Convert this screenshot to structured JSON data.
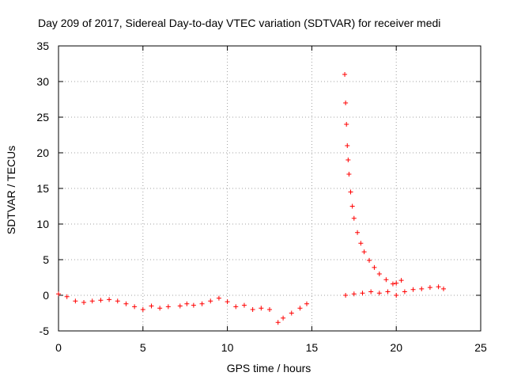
{
  "chart_data": {
    "type": "scatter",
    "title": "Day 209 of 2017, Sidereal Day-to-day VTEC variation (SDTVAR) for receiver medi",
    "xlabel": "GPS time / hours",
    "ylabel": "SDTVAR / TECUs",
    "xlim": [
      0,
      25
    ],
    "ylim": [
      -5,
      35
    ],
    "xticks": [
      0,
      5,
      10,
      15,
      20,
      25
    ],
    "yticks": [
      -5,
      0,
      5,
      10,
      15,
      20,
      25,
      30,
      35
    ],
    "grid": true,
    "marker": "+",
    "color": "#ff0000",
    "series": [
      {
        "name": "SDTVAR",
        "x": [
          0.0,
          0.5,
          1.0,
          1.5,
          2.0,
          2.5,
          3.0,
          3.5,
          4.0,
          4.5,
          5.0,
          5.5,
          6.0,
          6.5,
          7.2,
          7.6,
          8.0,
          8.5,
          9.0,
          9.5,
          10.0,
          10.5,
          11.0,
          11.5,
          12.0,
          12.5,
          13.0,
          13.3,
          13.8,
          14.3,
          14.7,
          16.95,
          17.0,
          17.05,
          17.1,
          17.15,
          17.2,
          17.3,
          17.4,
          17.5,
          17.7,
          17.9,
          18.1,
          18.4,
          18.7,
          19.0,
          19.4,
          19.8,
          20.0,
          20.3,
          17.0,
          17.5,
          18.0,
          18.5,
          19.0,
          19.5,
          20.0,
          20.5,
          21.0,
          21.5,
          22.0,
          22.5,
          22.8
        ],
        "y": [
          0.2,
          -0.2,
          -0.8,
          -1.0,
          -0.8,
          -0.7,
          -0.6,
          -0.8,
          -1.2,
          -1.6,
          -2.0,
          -1.5,
          -1.8,
          -1.6,
          -1.5,
          -1.2,
          -1.4,
          -1.2,
          -0.8,
          -0.4,
          -0.9,
          -1.6,
          -1.4,
          -2.0,
          -1.8,
          -2.0,
          -3.8,
          -3.2,
          -2.5,
          -1.8,
          -1.2,
          31.0,
          27.0,
          24.0,
          21.0,
          19.0,
          17.0,
          14.5,
          12.5,
          10.8,
          8.8,
          7.3,
          6.1,
          4.9,
          3.9,
          3.0,
          2.2,
          1.6,
          1.7,
          2.1,
          0.0,
          0.2,
          0.3,
          0.5,
          0.3,
          0.5,
          0.0,
          0.5,
          0.8,
          0.9,
          1.1,
          1.2,
          0.9
        ]
      }
    ]
  }
}
